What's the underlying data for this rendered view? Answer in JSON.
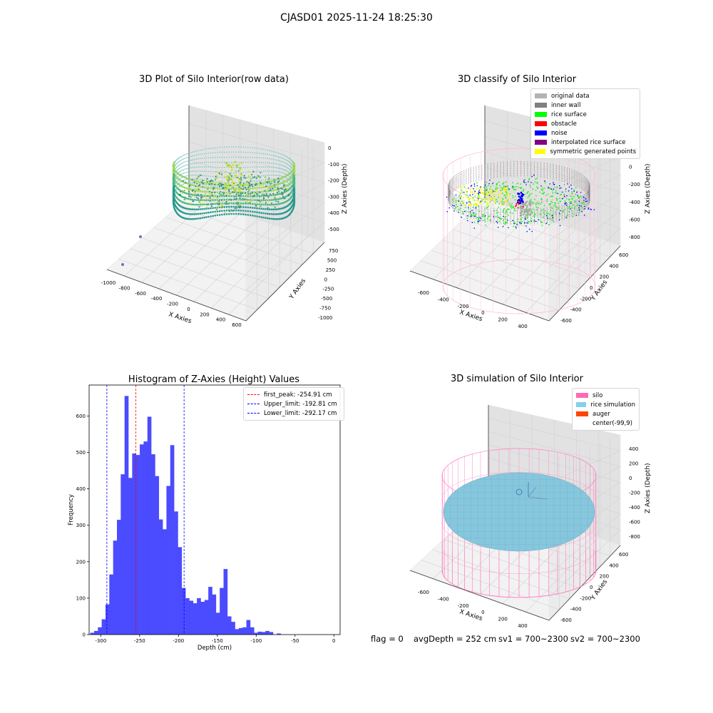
{
  "suptitle": "CJASD01 2025-11-24 18:25:30",
  "footer": {
    "flag": "flag = 0",
    "avg_depth": "avgDepth = 252 cm",
    "sv1": "sv1 = 700~2300",
    "sv2": "sv2 = 700~2300"
  },
  "panels": {
    "raw": {
      "title": "3D Plot of Silo Interior(row data)",
      "xlabel": "X Axies",
      "ylabel": "Y Axies",
      "zlabel": "Z Axies (Depth)",
      "xticks": [
        "-1000",
        "-800",
        "-600",
        "-400",
        "-200",
        "0",
        "200",
        "400",
        "600"
      ],
      "yticks": [
        "-1000",
        "-750",
        "-500",
        "-250",
        "0",
        "250",
        "500",
        "750"
      ],
      "zticks": [
        "0",
        "-100",
        "-200",
        "-300",
        "-400",
        "-500"
      ]
    },
    "classify": {
      "title": "3D classify of Silo Interior",
      "xlabel": "X Axies",
      "ylabel": "Y Axies",
      "zlabel": "Z Axies (Depth)",
      "xticks": [
        "-600",
        "-400",
        "-200",
        "0",
        "200",
        "400"
      ],
      "yticks": [
        "-600",
        "-400",
        "-200",
        "0",
        "200",
        "400",
        "600"
      ],
      "zticks": [
        "200",
        "0",
        "-200",
        "-400",
        "-600",
        "-800"
      ],
      "legend": [
        {
          "label": "original data",
          "color": "#b3b3b3"
        },
        {
          "label": "inner wall",
          "color": "#808080"
        },
        {
          "label": "rice surface",
          "color": "#00ff00"
        },
        {
          "label": "obstacle",
          "color": "#ff0000"
        },
        {
          "label": "noise",
          "color": "#0000ff"
        },
        {
          "label": "interpolated rice surface",
          "color": "#800080"
        },
        {
          "label": "symmetric generated points",
          "color": "#ffff00"
        }
      ]
    },
    "simulation": {
      "title": "3D simulation of Silo Interior",
      "xlabel": "X Axies",
      "ylabel": "Y Axies",
      "zlabel": "Z Axies (Depth)",
      "xticks": [
        "-600",
        "-400",
        "-200",
        "0",
        "200",
        "400"
      ],
      "yticks": [
        "-600",
        "-400",
        "-200",
        "0",
        "200",
        "400",
        "600"
      ],
      "zticks": [
        "400",
        "200",
        "0",
        "-200",
        "-400",
        "-600",
        "-800"
      ],
      "legend": [
        {
          "label": "silo",
          "color": "#ff69b4"
        },
        {
          "label": "rice simulation",
          "color": "#87ceeb"
        },
        {
          "label": "auger",
          "color": "#ff4500"
        },
        {
          "label": "center(-99,9)",
          "color": ""
        }
      ]
    }
  },
  "chart_data": {
    "type": "bar",
    "title": "Histogram of Z-Axies (Height) Values",
    "xlabel": "Depth (cm)",
    "ylabel": "Frequency",
    "xlim": [
      -315,
      8
    ],
    "ylim": [
      0,
      685
    ],
    "xticks": [
      -300,
      -250,
      -200,
      -150,
      -100,
      -50,
      0
    ],
    "yticks": [
      0,
      100,
      200,
      300,
      400,
      500,
      600
    ],
    "bin_start": -313.5,
    "bin_width": 4.9,
    "values": [
      5,
      10,
      20,
      42,
      83,
      165,
      258,
      315,
      440,
      655,
      430,
      497,
      493,
      522,
      530,
      598,
      495,
      435,
      316,
      289,
      408,
      520,
      338,
      240,
      128,
      100,
      93,
      86,
      100,
      90,
      95,
      131,
      110,
      60,
      128,
      180,
      50,
      35,
      15,
      18,
      20,
      40,
      20,
      5,
      8,
      7,
      10,
      7,
      0,
      3
    ],
    "bar_color": "#4b4bff",
    "lines": [
      {
        "label": "first_peak: -254.91 cm",
        "x": -254.91,
        "color": "#ff0000"
      },
      {
        "label": "Upper_limit: -192.81 cm",
        "x": -192.81,
        "color": "#0000ff"
      },
      {
        "label": "Lower_limit: -292.17 cm",
        "x": -292.17,
        "color": "#0000ff"
      }
    ],
    "legend_position": "upper right"
  }
}
